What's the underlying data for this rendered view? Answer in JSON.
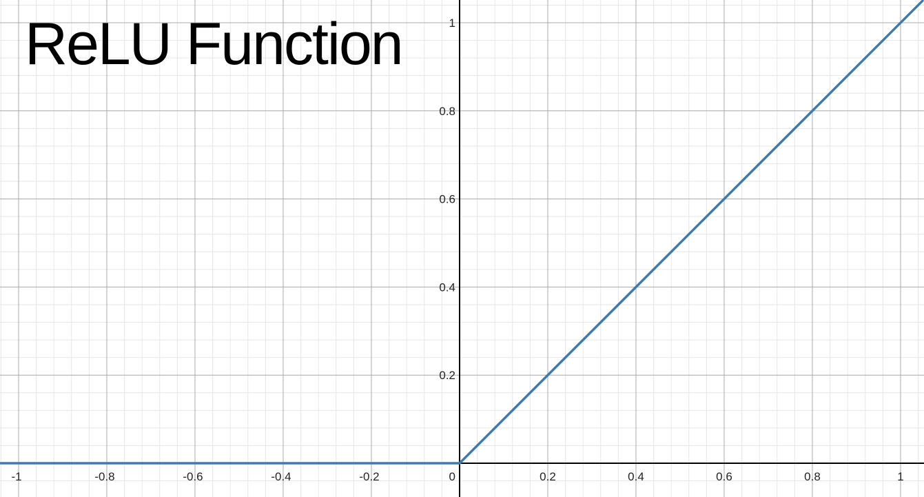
{
  "chart_data": {
    "type": "line",
    "title": "ReLU Function",
    "xlim": [
      -1.05,
      1.05
    ],
    "ylim": [
      -0.07,
      1.05
    ],
    "grid": true,
    "x_ticks": [
      -1,
      -0.8,
      -0.6,
      -0.4,
      -0.2,
      0,
      0.2,
      0.4,
      0.6,
      0.8,
      1
    ],
    "x_tick_labels": [
      "-1",
      "-0.8",
      "-0.6",
      "-0.4",
      "-0.2",
      "0",
      "0.2",
      "0.4",
      "0.6",
      "0.8",
      "1"
    ],
    "y_ticks": [
      0.2,
      0.4,
      0.6,
      0.8,
      1
    ],
    "y_tick_labels": [
      "0.2",
      "0.4",
      "0.6",
      "0.8",
      "1"
    ],
    "series": [
      {
        "color": "#3d7ab0",
        "x": [
          -1.05,
          0,
          1.05
        ],
        "y": [
          0,
          0,
          1.05
        ]
      }
    ]
  }
}
